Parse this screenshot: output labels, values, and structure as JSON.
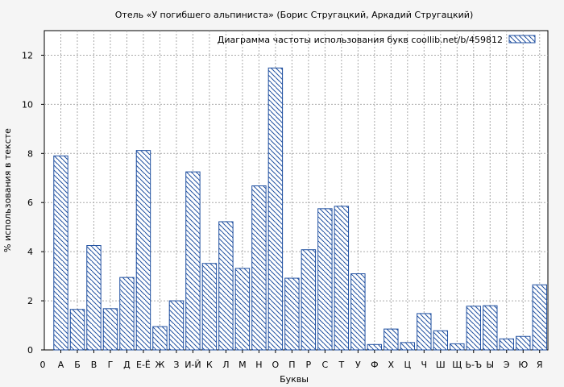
{
  "chart_data": {
    "type": "bar",
    "title": "Отель «У погибшего альпиниста» (Борис Стругацкий, Аркадий Стругацкий)",
    "xlabel": "Буквы",
    "ylabel": "% использования в тексте",
    "legend": "Диаграмма частоты использования букв  coollib.net/b/459812",
    "legend_position": "top-right",
    "grid": true,
    "ylim": [
      0,
      13
    ],
    "yticks": [
      0,
      2,
      4,
      6,
      8,
      10,
      12
    ],
    "x_start_label": "0",
    "categories": [
      "А",
      "Б",
      "В",
      "Г",
      "Д",
      "Е-Ё",
      "Ж",
      "З",
      "И-Й",
      "К",
      "Л",
      "М",
      "Н",
      "О",
      "П",
      "Р",
      "С",
      "Т",
      "У",
      "Ф",
      "Х",
      "Ц",
      "Ч",
      "Ш",
      "Щ",
      "Ь-Ъ",
      "Ы",
      "Э",
      "Ю",
      "Я"
    ],
    "values": [
      7.9,
      1.65,
      4.25,
      1.68,
      2.95,
      8.12,
      0.95,
      2.0,
      7.25,
      3.52,
      5.22,
      3.32,
      6.68,
      11.48,
      2.92,
      4.08,
      5.75,
      5.85,
      3.1,
      0.22,
      0.85,
      0.3,
      1.48,
      0.78,
      0.25,
      1.78,
      1.8,
      0.45,
      0.55,
      2.65
    ],
    "colors": {
      "bar_stroke": "#1f4fa0",
      "grid": "#aaaaaa",
      "background": "#f5f5f5"
    }
  }
}
